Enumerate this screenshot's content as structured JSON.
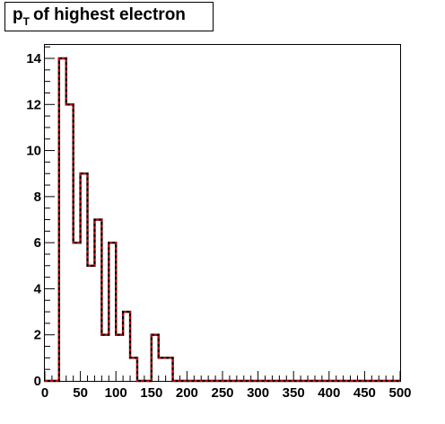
{
  "title": {
    "main": "p",
    "subscript": "T",
    "rest": "of highest electron"
  },
  "colors": {
    "line_outer": "#000000",
    "line_inner": "#cc0000",
    "axis": "#000000",
    "background": "#ffffff"
  },
  "chart_data": {
    "type": "bar",
    "style": "step-histogram",
    "title": "p_T of highest electron",
    "xlabel": "",
    "ylabel": "",
    "xlim": [
      0,
      500
    ],
    "ylim": [
      0,
      15
    ],
    "bin_width": 10,
    "bin_edges_start": 0,
    "values": [
      0,
      0,
      14,
      12,
      6,
      9,
      5,
      7,
      2,
      6,
      2,
      3,
      1,
      0,
      0,
      2,
      1,
      1,
      0,
      0,
      0,
      0,
      0,
      0,
      0,
      0,
      0,
      0,
      0,
      0,
      0,
      0,
      0,
      0,
      0,
      0,
      0,
      0,
      0,
      0,
      0,
      0,
      0,
      0,
      0,
      0,
      0,
      0,
      0,
      0
    ],
    "x_ticks": [
      "0",
      "50",
      "100",
      "150",
      "200",
      "250",
      "300",
      "350",
      "400",
      "450",
      "500"
    ],
    "x_tick_values": [
      0,
      50,
      100,
      150,
      200,
      250,
      300,
      350,
      400,
      450,
      500
    ],
    "y_ticks": [
      "0",
      "2",
      "4",
      "6",
      "8",
      "10",
      "12",
      "14"
    ],
    "y_tick_values": [
      0,
      2,
      4,
      6,
      8,
      10,
      12,
      14
    ],
    "grid": false,
    "legend": "none"
  }
}
